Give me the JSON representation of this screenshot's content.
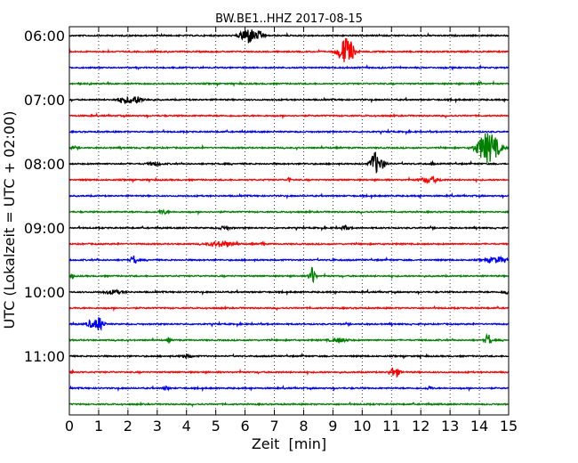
{
  "chart_data": {
    "type": "line",
    "title": "BW.BE1..HHZ 2017-08-15",
    "xlabel": "Zeit  [min]",
    "ylabel": "UTC (Lokalzeit = UTC + 02:00)",
    "xlim": [
      0,
      15
    ],
    "x_ticks": [
      0,
      1,
      2,
      3,
      4,
      5,
      6,
      7,
      8,
      9,
      10,
      11,
      12,
      13,
      14,
      15
    ],
    "y_ticks": [
      {
        "label": "06:00",
        "row": 0
      },
      {
        "label": "07:00",
        "row": 4
      },
      {
        "label": "08:00",
        "row": 8
      },
      {
        "label": "09:00",
        "row": 12
      },
      {
        "label": "10:00",
        "row": 16
      },
      {
        "label": "11:00",
        "row": 20
      }
    ],
    "grid": "vertical dotted",
    "trace_minutes": 15,
    "rows": [
      {
        "start": "06:00",
        "color": "#000000",
        "events": [
          [
            6.1,
            9,
            0.25
          ],
          [
            6.5,
            3,
            0.15
          ]
        ]
      },
      {
        "start": "06:15",
        "color": "#ff0000",
        "events": [
          [
            9.5,
            14,
            0.22
          ],
          [
            9.3,
            5,
            0.2
          ]
        ]
      },
      {
        "start": "06:30",
        "color": "#0000ff",
        "events": []
      },
      {
        "start": "06:45",
        "color": "#008000",
        "events": [
          [
            14.0,
            4,
            0.05
          ]
        ]
      },
      {
        "start": "07:00",
        "color": "#000000",
        "events": [
          [
            2.2,
            4,
            0.3
          ],
          [
            1.8,
            2,
            0.2
          ]
        ]
      },
      {
        "start": "07:15",
        "color": "#ff0000",
        "events": []
      },
      {
        "start": "07:30",
        "color": "#0000ff",
        "events": []
      },
      {
        "start": "07:45",
        "color": "#008000",
        "events": [
          [
            14.4,
            14,
            0.3
          ],
          [
            14.1,
            8,
            0.25
          ],
          [
            0.1,
            2,
            0.05
          ]
        ]
      },
      {
        "start": "08:00",
        "color": "#000000",
        "events": [
          [
            10.4,
            11,
            0.12
          ],
          [
            10.6,
            6,
            0.2
          ],
          [
            12.4,
            2,
            0.05
          ],
          [
            2.9,
            2,
            0.2
          ]
        ]
      },
      {
        "start": "08:15",
        "color": "#ff0000",
        "events": [
          [
            12.3,
            3,
            0.3
          ],
          [
            7.5,
            4,
            0.04
          ]
        ]
      },
      {
        "start": "08:30",
        "color": "#0000ff",
        "events": []
      },
      {
        "start": "08:45",
        "color": "#008000",
        "events": [
          [
            3.2,
            2,
            0.15
          ]
        ]
      },
      {
        "start": "09:00",
        "color": "#000000",
        "events": [
          [
            9.4,
            2,
            0.15
          ],
          [
            5.3,
            1.5,
            0.2
          ]
        ]
      },
      {
        "start": "09:15",
        "color": "#ff0000",
        "events": [
          [
            5.2,
            3,
            0.4
          ],
          [
            6.6,
            2,
            0.05
          ]
        ]
      },
      {
        "start": "09:30",
        "color": "#0000ff",
        "events": [
          [
            2.2,
            5,
            0.1
          ],
          [
            9.0,
            4,
            0.04
          ],
          [
            14.6,
            3,
            0.35
          ]
        ]
      },
      {
        "start": "09:45",
        "color": "#008000",
        "events": [
          [
            8.3,
            10,
            0.1
          ],
          [
            0.1,
            2,
            0.05
          ]
        ]
      },
      {
        "start": "10:00",
        "color": "#000000",
        "events": [
          [
            1.5,
            2,
            0.3
          ],
          [
            14.9,
            2,
            0.1
          ]
        ]
      },
      {
        "start": "10:15",
        "color": "#ff0000",
        "events": []
      },
      {
        "start": "10:30",
        "color": "#0000ff",
        "events": [
          [
            1.0,
            8,
            0.15
          ],
          [
            0.7,
            4,
            0.1
          ]
        ]
      },
      {
        "start": "10:45",
        "color": "#008000",
        "events": [
          [
            14.3,
            7,
            0.1
          ],
          [
            3.4,
            3,
            0.05
          ],
          [
            9.2,
            2,
            0.3
          ]
        ]
      },
      {
        "start": "11:00",
        "color": "#000000",
        "events": [
          [
            4.0,
            1.5,
            0.2
          ]
        ]
      },
      {
        "start": "11:15",
        "color": "#ff0000",
        "events": [
          [
            11.1,
            6,
            0.15
          ],
          [
            0.1,
            2,
            0.05
          ]
        ]
      },
      {
        "start": "11:30",
        "color": "#0000ff",
        "events": [
          [
            3.3,
            2,
            0.1
          ],
          [
            12.3,
            2,
            0.1
          ]
        ]
      },
      {
        "start": "11:45",
        "color": "#008000",
        "events": []
      }
    ]
  }
}
